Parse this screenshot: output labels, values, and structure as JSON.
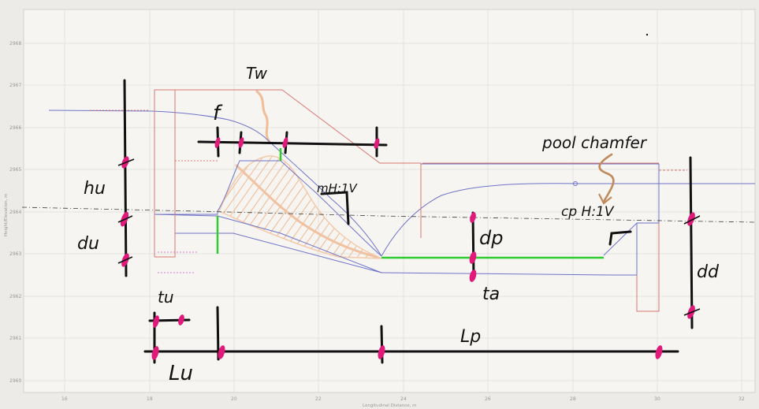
{
  "plot": {
    "xlabel": "Longitudinal Distance, m",
    "ylabel": "Height/Elevation, m",
    "x_ticks": [
      "16",
      "18",
      "20",
      "22",
      "24",
      "26",
      "28",
      "30",
      "32"
    ],
    "y_ticks": [
      "2960",
      "2961",
      "2962",
      "2963",
      "2964",
      "2965",
      "2966",
      "2967",
      "2968"
    ]
  },
  "annotations": {
    "tw": "Tw",
    "f": "f",
    "hu": "hu",
    "du": "du",
    "tu": "tu",
    "lu": "Lu",
    "slope": "mH:1V",
    "pool_chamfer": "pool chamfer",
    "chamfer_slope": "cp H:1V",
    "dp": "dp",
    "ta": "ta",
    "lp": "Lp",
    "dd": "dd"
  },
  "colors": {
    "background": "#ecebe8",
    "plot_area": "#f6f5f2",
    "blue_line": "#6f74c8",
    "red_line": "#d9786e",
    "green_line": "#2ecc2e",
    "ink": "#111111",
    "magenta_marker": "#e0197a",
    "hatch": "#f3c7a8",
    "chamfer_arrow": "#c08a5a"
  }
}
